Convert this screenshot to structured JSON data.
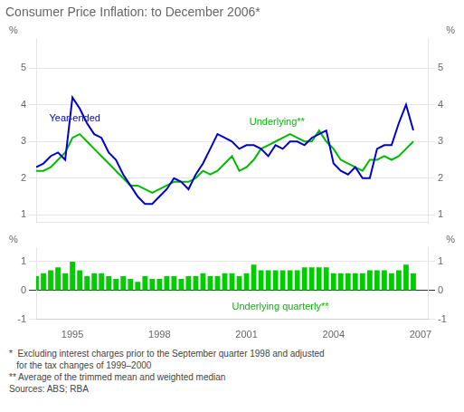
{
  "chart_data": [
    {
      "type": "line",
      "title": "Consumer Price Inflation: to December 2006*",
      "ylabel": "%",
      "y2label": "%",
      "x": [
        1993.75,
        1994.0,
        1994.25,
        1994.5,
        1994.75,
        1995.0,
        1995.25,
        1995.5,
        1995.75,
        1996.0,
        1996.25,
        1996.5,
        1996.75,
        1997.0,
        1997.25,
        1997.5,
        1997.75,
        1998.0,
        1998.25,
        1998.5,
        1998.75,
        1999.0,
        1999.25,
        1999.5,
        1999.75,
        2000.0,
        2000.25,
        2000.5,
        2000.75,
        2001.0,
        2001.25,
        2001.5,
        2001.75,
        2002.0,
        2002.25,
        2002.5,
        2002.75,
        2003.0,
        2003.25,
        2003.5,
        2003.75,
        2004.0,
        2004.25,
        2004.5,
        2004.75,
        2005.0,
        2005.25,
        2005.5,
        2005.75,
        2006.0,
        2006.25,
        2006.5,
        2006.75
      ],
      "series": [
        {
          "color": "#0000CC",
          "values": [
            2.3,
            2.4,
            2.6,
            2.7,
            2.5,
            4.2,
            3.9,
            3.5,
            3.2,
            3.1,
            2.7,
            2.5,
            2.1,
            1.8,
            1.5,
            1.3,
            1.3,
            1.5,
            1.7,
            2.0,
            1.9,
            1.7,
            2.1,
            2.4,
            2.8,
            3.2,
            3.1,
            3.0,
            2.8,
            2.9,
            2.9,
            2.8,
            2.6,
            2.9,
            2.8,
            3.0,
            3.0,
            2.9,
            3.1,
            3.2,
            3.3,
            2.4,
            2.2,
            2.1,
            2.3,
            2.0,
            2.0,
            2.8,
            2.9,
            2.9,
            3.5,
            4.0,
            3.3
          ]
        },
        {
          "color": "#00BB00",
          "values": [
            2.2,
            2.2,
            2.3,
            2.5,
            2.7,
            3.1,
            3.2,
            3.0,
            2.8,
            2.6,
            2.4,
            2.2,
            2.0,
            1.8,
            1.8,
            1.7,
            1.6,
            1.7,
            1.8,
            1.9,
            1.9,
            1.9,
            2.0,
            2.2,
            2.1,
            2.2,
            2.4,
            2.6,
            2.2,
            2.3,
            2.5,
            2.8,
            2.9,
            3.0,
            3.1,
            3.2,
            3.1,
            3.0,
            3.0,
            3.3,
            3.0,
            2.8,
            2.5,
            2.4,
            2.3,
            2.2,
            2.5,
            2.5,
            2.6,
            2.5,
            2.6,
            2.8,
            3.0
          ]
        }
      ],
      "xlim": [
        1993.75,
        2007.25
      ],
      "ylim": [
        0.8,
        5.8
      ],
      "yticks": [
        1,
        2,
        3,
        4,
        5
      ],
      "y2lim": [
        0.8,
        5.8
      ],
      "y2ticks": [
        1,
        2,
        3,
        4,
        5
      ],
      "grid": true,
      "tick_labels": "y",
      "annotations": [
        {
          "text": "Year-ended",
          "x": 1994.2,
          "y": 3.55,
          "color": "#0000CC"
        },
        {
          "text": "Underlying**",
          "x": 2001.1,
          "y": 3.45,
          "color": "#00BB00"
        }
      ]
    },
    {
      "type": "bar",
      "ylabel": "%",
      "y2label": "%",
      "x": [
        1993.75,
        1994.0,
        1994.25,
        1994.5,
        1994.75,
        1995.0,
        1995.25,
        1995.5,
        1995.75,
        1996.0,
        1996.25,
        1996.5,
        1996.75,
        1997.0,
        1997.25,
        1997.5,
        1997.75,
        1998.0,
        1998.25,
        1998.5,
        1998.75,
        1999.0,
        1999.25,
        1999.5,
        1999.75,
        2000.0,
        2000.25,
        2000.5,
        2000.75,
        2001.0,
        2001.25,
        2001.5,
        2001.75,
        2002.0,
        2002.25,
        2002.5,
        2002.75,
        2003.0,
        2003.25,
        2003.5,
        2003.75,
        2004.0,
        2004.25,
        2004.5,
        2004.75,
        2005.0,
        2005.25,
        2005.5,
        2005.75,
        2006.0,
        2006.25,
        2006.5,
        2006.75
      ],
      "values": [
        0.5,
        0.6,
        0.7,
        0.8,
        0.6,
        1.0,
        0.7,
        0.5,
        0.6,
        0.6,
        0.5,
        0.4,
        0.5,
        0.4,
        0.3,
        0.5,
        0.4,
        0.4,
        0.5,
        0.5,
        0.4,
        0.5,
        0.5,
        0.6,
        0.5,
        0.5,
        0.6,
        0.6,
        0.5,
        0.6,
        0.9,
        0.7,
        0.7,
        0.7,
        0.7,
        0.7,
        0.7,
        0.8,
        0.8,
        0.8,
        0.8,
        0.6,
        0.6,
        0.6,
        0.6,
        0.6,
        0.7,
        0.7,
        0.7,
        0.6,
        0.7,
        0.9,
        0.6
      ],
      "color": "#00CC00",
      "xlim": [
        1993.75,
        2007.25
      ],
      "xticks": [
        1995,
        1998,
        2001,
        2004,
        2007
      ],
      "ylim": [
        -1.0,
        1.5
      ],
      "yticks": [
        -1,
        0,
        1
      ],
      "y2lim": [
        -1.0,
        1.5
      ],
      "y2ticks": [
        -1,
        0,
        1
      ],
      "grid": true,
      "annotations": [
        {
          "text": "Underlying quarterly**",
          "x": 2000.5,
          "y": -0.65,
          "color": "#00BB00"
        }
      ],
      "footnotes": [
        "*  Excluding interest charges prior to the September quarter 1998 and adjusted",
        "   for the tax changes of 1999–2000",
        "** Average of the trimmed mean and weighted median",
        "Sources: ABS; RBA"
      ]
    }
  ]
}
